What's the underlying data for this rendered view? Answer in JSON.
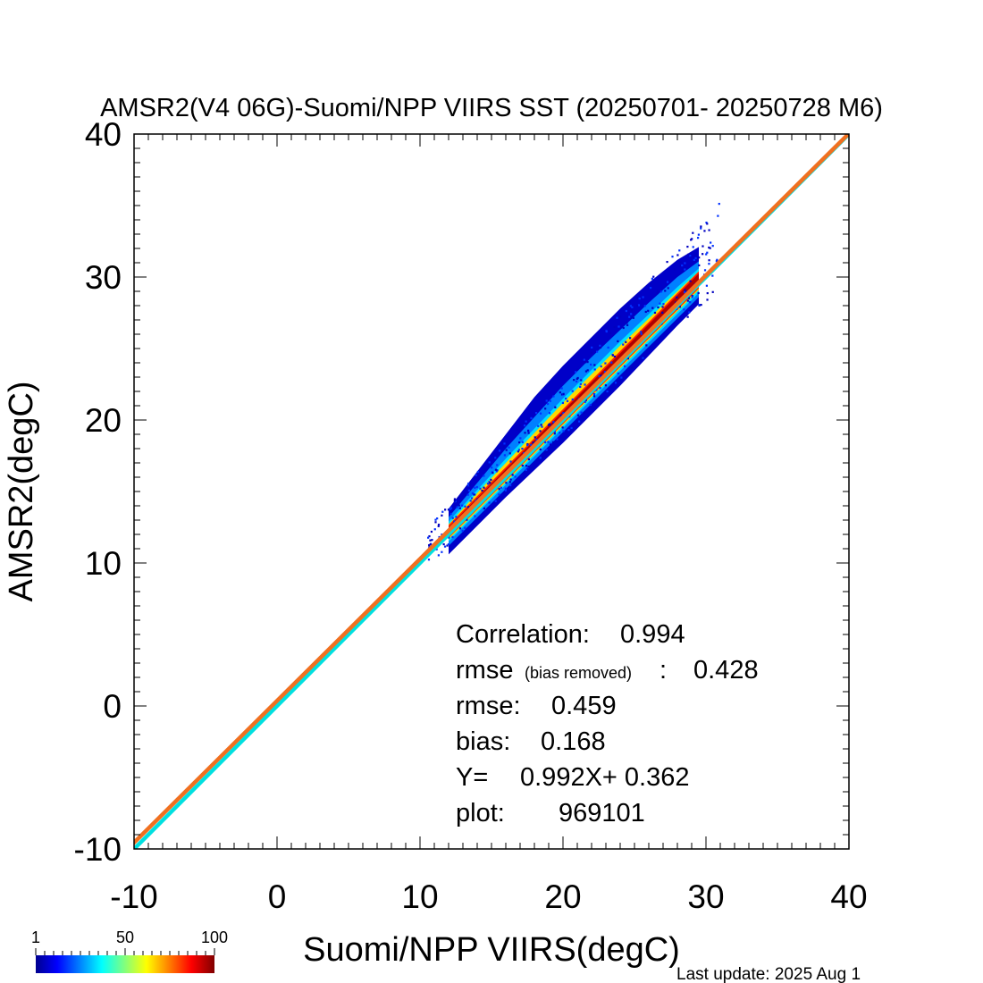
{
  "chart_data": {
    "type": "scatter",
    "subtype": "density-heatmap",
    "title": "AMSR2(V4 06G)-Suomi/NPP VIIRS SST (20250701- 20250728 M6)",
    "xlabel": "Suomi/NPP VIIRS(degC)",
    "ylabel": "AMSR2(degC)",
    "xlim": [
      -10,
      40
    ],
    "ylim": [
      -10,
      40
    ],
    "x_ticks": [
      "-10",
      "0",
      "10",
      "20",
      "30",
      "40"
    ],
    "y_ticks": [
      "-10",
      "0",
      "10",
      "20",
      "30",
      "40"
    ],
    "grid": false,
    "density_ridge": {
      "x": [
        12,
        14,
        16,
        18,
        20,
        22,
        24,
        26,
        28,
        29.5
      ],
      "y": [
        12.2,
        14.2,
        16.2,
        18.2,
        20.2,
        22.2,
        24.2,
        26.2,
        28.2,
        29.7
      ]
    },
    "lines": [
      {
        "label": "one-to-one",
        "slope": 1.0,
        "intercept": 0.0,
        "color": "#00e0e0"
      },
      {
        "label": "regression",
        "slope": 0.992,
        "intercept": 0.362,
        "color": "#f07020"
      }
    ],
    "stats": {
      "correlation_label": "Correlation:",
      "correlation": "0.994",
      "rmse_br_label": "rmse",
      "rmse_br_note": "(bias removed)",
      "rmse_br_colon": ":",
      "rmse_br": "0.428",
      "rmse_label": "rmse:",
      "rmse": "0.459",
      "bias_label": "bias:",
      "bias": "0.168",
      "fit_label": "Y=",
      "fit": "0.992X+  0.362",
      "count_label": "plot:",
      "count": "969101"
    },
    "colorbar": {
      "labels": [
        "1",
        "50",
        "100"
      ],
      "min": 1,
      "max": 100,
      "colors": [
        "#00008f",
        "#0000ff",
        "#00ffff",
        "#ffff00",
        "#ff0000",
        "#800000"
      ]
    }
  },
  "footer": {
    "last_update": "Last update: 2025 Aug  1"
  }
}
